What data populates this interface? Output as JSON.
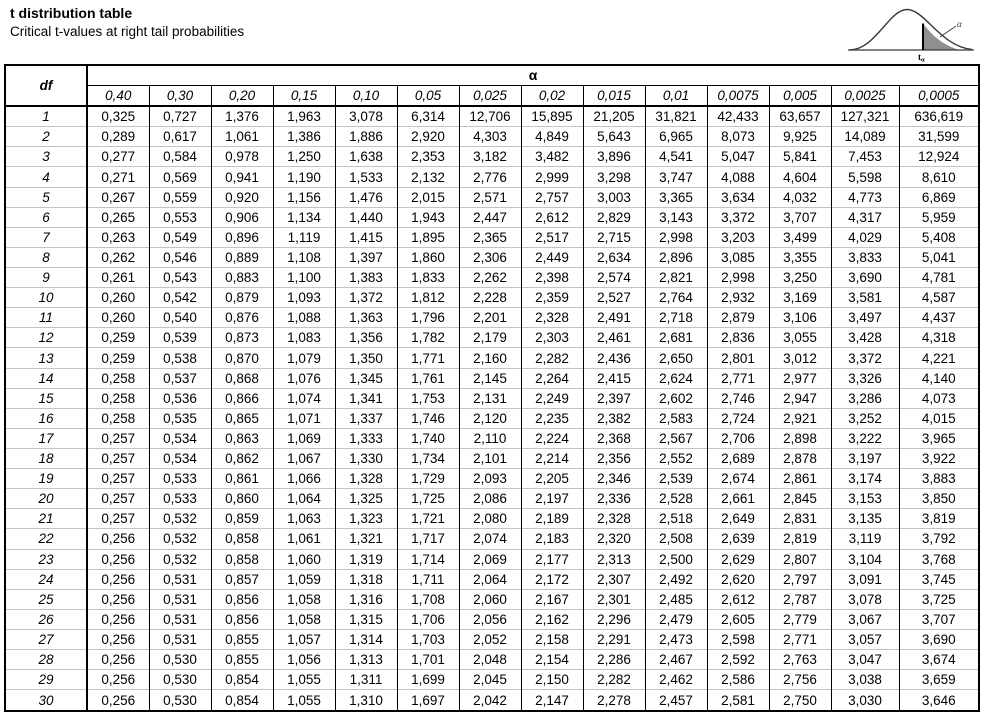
{
  "page": {
    "title": "t distribution table",
    "subtitle": "Critical t-values at right tail probabilities"
  },
  "icon": {
    "name": "t-distribution-right-tail-curve",
    "tail_area_label": "α",
    "axis_label_base": "t",
    "axis_label_sub": "α",
    "shade_color": "#8f8f8f",
    "stroke_color": "#3a3a3a"
  },
  "table": {
    "corner_header": "df",
    "alpha_header": "α",
    "col_headers": [
      "0,40",
      "0,30",
      "0,20",
      "0,15",
      "0,10",
      "0,05",
      "0,025",
      "0,02",
      "0,015",
      "0,01",
      "0,0075",
      "0,005",
      "0,0025",
      "0,0005"
    ],
    "rows": [
      {
        "df": "1",
        "values": [
          "0,325",
          "0,727",
          "1,376",
          "1,963",
          "3,078",
          "6,314",
          "12,706",
          "15,895",
          "21,205",
          "31,821",
          "42,433",
          "63,657",
          "127,321",
          "636,619"
        ]
      },
      {
        "df": "2",
        "values": [
          "0,289",
          "0,617",
          "1,061",
          "1,386",
          "1,886",
          "2,920",
          "4,303",
          "4,849",
          "5,643",
          "6,965",
          "8,073",
          "9,925",
          "14,089",
          "31,599"
        ]
      },
      {
        "df": "3",
        "values": [
          "0,277",
          "0,584",
          "0,978",
          "1,250",
          "1,638",
          "2,353",
          "3,182",
          "3,482",
          "3,896",
          "4,541",
          "5,047",
          "5,841",
          "7,453",
          "12,924"
        ]
      },
      {
        "df": "4",
        "values": [
          "0,271",
          "0,569",
          "0,941",
          "1,190",
          "1,533",
          "2,132",
          "2,776",
          "2,999",
          "3,298",
          "3,747",
          "4,088",
          "4,604",
          "5,598",
          "8,610"
        ]
      },
      {
        "df": "5",
        "values": [
          "0,267",
          "0,559",
          "0,920",
          "1,156",
          "1,476",
          "2,015",
          "2,571",
          "2,757",
          "3,003",
          "3,365",
          "3,634",
          "4,032",
          "4,773",
          "6,869"
        ]
      },
      {
        "df": "6",
        "values": [
          "0,265",
          "0,553",
          "0,906",
          "1,134",
          "1,440",
          "1,943",
          "2,447",
          "2,612",
          "2,829",
          "3,143",
          "3,372",
          "3,707",
          "4,317",
          "5,959"
        ]
      },
      {
        "df": "7",
        "values": [
          "0,263",
          "0,549",
          "0,896",
          "1,119",
          "1,415",
          "1,895",
          "2,365",
          "2,517",
          "2,715",
          "2,998",
          "3,203",
          "3,499",
          "4,029",
          "5,408"
        ]
      },
      {
        "df": "8",
        "values": [
          "0,262",
          "0,546",
          "0,889",
          "1,108",
          "1,397",
          "1,860",
          "2,306",
          "2,449",
          "2,634",
          "2,896",
          "3,085",
          "3,355",
          "3,833",
          "5,041"
        ]
      },
      {
        "df": "9",
        "values": [
          "0,261",
          "0,543",
          "0,883",
          "1,100",
          "1,383",
          "1,833",
          "2,262",
          "2,398",
          "2,574",
          "2,821",
          "2,998",
          "3,250",
          "3,690",
          "4,781"
        ]
      },
      {
        "df": "10",
        "values": [
          "0,260",
          "0,542",
          "0,879",
          "1,093",
          "1,372",
          "1,812",
          "2,228",
          "2,359",
          "2,527",
          "2,764",
          "2,932",
          "3,169",
          "3,581",
          "4,587"
        ]
      },
      {
        "df": "11",
        "values": [
          "0,260",
          "0,540",
          "0,876",
          "1,088",
          "1,363",
          "1,796",
          "2,201",
          "2,328",
          "2,491",
          "2,718",
          "2,879",
          "3,106",
          "3,497",
          "4,437"
        ]
      },
      {
        "df": "12",
        "values": [
          "0,259",
          "0,539",
          "0,873",
          "1,083",
          "1,356",
          "1,782",
          "2,179",
          "2,303",
          "2,461",
          "2,681",
          "2,836",
          "3,055",
          "3,428",
          "4,318"
        ]
      },
      {
        "df": "13",
        "values": [
          "0,259",
          "0,538",
          "0,870",
          "1,079",
          "1,350",
          "1,771",
          "2,160",
          "2,282",
          "2,436",
          "2,650",
          "2,801",
          "3,012",
          "3,372",
          "4,221"
        ]
      },
      {
        "df": "14",
        "values": [
          "0,258",
          "0,537",
          "0,868",
          "1,076",
          "1,345",
          "1,761",
          "2,145",
          "2,264",
          "2,415",
          "2,624",
          "2,771",
          "2,977",
          "3,326",
          "4,140"
        ]
      },
      {
        "df": "15",
        "values": [
          "0,258",
          "0,536",
          "0,866",
          "1,074",
          "1,341",
          "1,753",
          "2,131",
          "2,249",
          "2,397",
          "2,602",
          "2,746",
          "2,947",
          "3,286",
          "4,073"
        ]
      },
      {
        "df": "16",
        "values": [
          "0,258",
          "0,535",
          "0,865",
          "1,071",
          "1,337",
          "1,746",
          "2,120",
          "2,235",
          "2,382",
          "2,583",
          "2,724",
          "2,921",
          "3,252",
          "4,015"
        ]
      },
      {
        "df": "17",
        "values": [
          "0,257",
          "0,534",
          "0,863",
          "1,069",
          "1,333",
          "1,740",
          "2,110",
          "2,224",
          "2,368",
          "2,567",
          "2,706",
          "2,898",
          "3,222",
          "3,965"
        ]
      },
      {
        "df": "18",
        "values": [
          "0,257",
          "0,534",
          "0,862",
          "1,067",
          "1,330",
          "1,734",
          "2,101",
          "2,214",
          "2,356",
          "2,552",
          "2,689",
          "2,878",
          "3,197",
          "3,922"
        ]
      },
      {
        "df": "19",
        "values": [
          "0,257",
          "0,533",
          "0,861",
          "1,066",
          "1,328",
          "1,729",
          "2,093",
          "2,205",
          "2,346",
          "2,539",
          "2,674",
          "2,861",
          "3,174",
          "3,883"
        ]
      },
      {
        "df": "20",
        "values": [
          "0,257",
          "0,533",
          "0,860",
          "1,064",
          "1,325",
          "1,725",
          "2,086",
          "2,197",
          "2,336",
          "2,528",
          "2,661",
          "2,845",
          "3,153",
          "3,850"
        ]
      },
      {
        "df": "21",
        "values": [
          "0,257",
          "0,532",
          "0,859",
          "1,063",
          "1,323",
          "1,721",
          "2,080",
          "2,189",
          "2,328",
          "2,518",
          "2,649",
          "2,831",
          "3,135",
          "3,819"
        ]
      },
      {
        "df": "22",
        "values": [
          "0,256",
          "0,532",
          "0,858",
          "1,061",
          "1,321",
          "1,717",
          "2,074",
          "2,183",
          "2,320",
          "2,508",
          "2,639",
          "2,819",
          "3,119",
          "3,792"
        ]
      },
      {
        "df": "23",
        "values": [
          "0,256",
          "0,532",
          "0,858",
          "1,060",
          "1,319",
          "1,714",
          "2,069",
          "2,177",
          "2,313",
          "2,500",
          "2,629",
          "2,807",
          "3,104",
          "3,768"
        ]
      },
      {
        "df": "24",
        "values": [
          "0,256",
          "0,531",
          "0,857",
          "1,059",
          "1,318",
          "1,711",
          "2,064",
          "2,172",
          "2,307",
          "2,492",
          "2,620",
          "2,797",
          "3,091",
          "3,745"
        ]
      },
      {
        "df": "25",
        "values": [
          "0,256",
          "0,531",
          "0,856",
          "1,058",
          "1,316",
          "1,708",
          "2,060",
          "2,167",
          "2,301",
          "2,485",
          "2,612",
          "2,787",
          "3,078",
          "3,725"
        ]
      },
      {
        "df": "26",
        "values": [
          "0,256",
          "0,531",
          "0,856",
          "1,058",
          "1,315",
          "1,706",
          "2,056",
          "2,162",
          "2,296",
          "2,479",
          "2,605",
          "2,779",
          "3,067",
          "3,707"
        ]
      },
      {
        "df": "27",
        "values": [
          "0,256",
          "0,531",
          "0,855",
          "1,057",
          "1,314",
          "1,703",
          "2,052",
          "2,158",
          "2,291",
          "2,473",
          "2,598",
          "2,771",
          "3,057",
          "3,690"
        ]
      },
      {
        "df": "28",
        "values": [
          "0,256",
          "0,530",
          "0,855",
          "1,056",
          "1,313",
          "1,701",
          "2,048",
          "2,154",
          "2,286",
          "2,467",
          "2,592",
          "2,763",
          "3,047",
          "3,674"
        ]
      },
      {
        "df": "29",
        "values": [
          "0,256",
          "0,530",
          "0,854",
          "1,055",
          "1,311",
          "1,699",
          "2,045",
          "2,150",
          "2,282",
          "2,462",
          "2,586",
          "2,756",
          "3,038",
          "3,659"
        ]
      },
      {
        "df": "30",
        "values": [
          "0,256",
          "0,530",
          "0,854",
          "1,055",
          "1,310",
          "1,697",
          "2,042",
          "2,147",
          "2,278",
          "2,457",
          "2,581",
          "2,750",
          "3,030",
          "3,646"
        ]
      }
    ]
  }
}
